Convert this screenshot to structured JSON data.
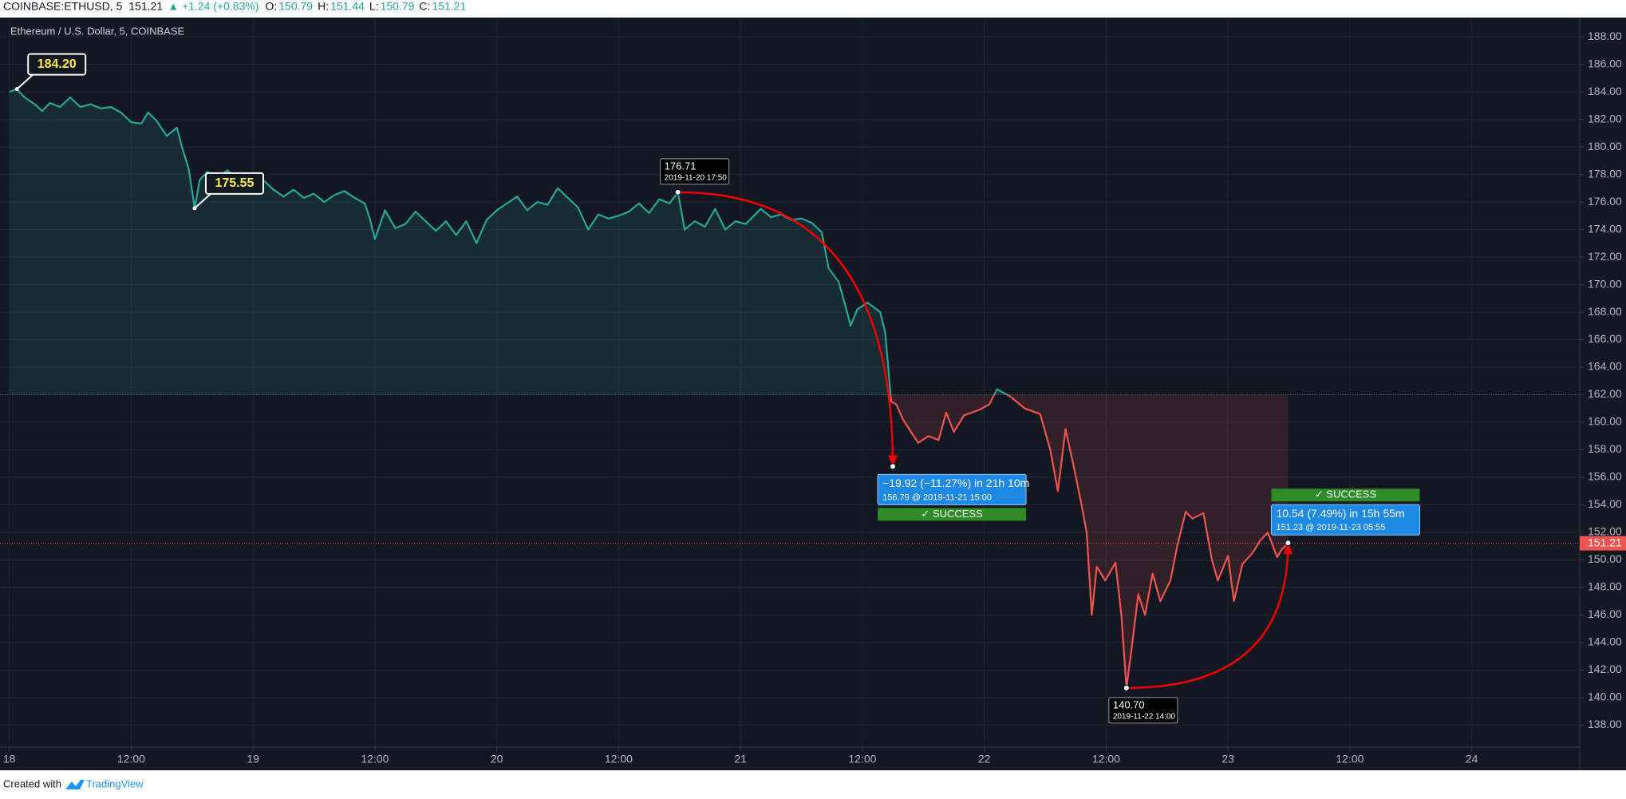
{
  "header": {
    "symbol": "COINBASE:ETHUSD, 5",
    "price": 151.21,
    "change": "▲ +1.24 (+0.83%)",
    "ohlc": [
      {
        "key": "O:",
        "value": 150.79
      },
      {
        "key": "H:",
        "value": 151.44
      },
      {
        "key": "L:",
        "value": 150.79
      },
      {
        "key": "C:",
        "value": 151.21
      }
    ]
  },
  "chart_data": {
    "type": "baseline",
    "title": "Ethereum / U.S. Dollar, 5, COINBASE",
    "baseline": 162,
    "color_above": "#26a69a",
    "color_below": "#ef5350",
    "grid": true,
    "last_price": {
      "value": 151.21,
      "label": "151.21"
    },
    "x": [
      "2019-11-18 00:00",
      "2019-11-18 00:45",
      "2019-11-18 01:30",
      "2019-11-18 02:30",
      "2019-11-18 03:15",
      "2019-11-18 04:00",
      "2019-11-18 05:00",
      "2019-11-18 06:00",
      "2019-11-18 07:00",
      "2019-11-18 08:00",
      "2019-11-18 09:00",
      "2019-11-18 10:00",
      "2019-11-18 11:00",
      "2019-11-18 12:00",
      "2019-11-18 13:00",
      "2019-11-18 13:40",
      "2019-11-18 14:30",
      "2019-11-18 15:30",
      "2019-11-18 16:30",
      "2019-11-18 17:00",
      "2019-11-18 17:40",
      "2019-11-18 18:15",
      "2019-11-18 18:45",
      "2019-11-18 19:30",
      "2019-11-18 20:30",
      "2019-11-18 21:30",
      "2019-11-18 22:30",
      "2019-11-18 23:30",
      "2019-11-19 00:00",
      "2019-11-19 01:00",
      "2019-11-19 02:00",
      "2019-11-19 03:00",
      "2019-11-19 04:00",
      "2019-11-19 05:00",
      "2019-11-19 06:00",
      "2019-11-19 07:00",
      "2019-11-19 08:00",
      "2019-11-19 09:00",
      "2019-11-19 10:00",
      "2019-11-19 11:00",
      "2019-11-19 11:30",
      "2019-11-19 12:00",
      "2019-11-19 13:00",
      "2019-11-19 14:00",
      "2019-11-19 15:00",
      "2019-11-19 16:00",
      "2019-11-19 17:00",
      "2019-11-19 18:00",
      "2019-11-19 19:00",
      "2019-11-19 20:00",
      "2019-11-19 21:00",
      "2019-11-19 22:00",
      "2019-11-19 23:00",
      "2019-11-20 00:00",
      "2019-11-20 01:00",
      "2019-11-20 02:00",
      "2019-11-20 03:00",
      "2019-11-20 04:00",
      "2019-11-20 05:00",
      "2019-11-20 06:00",
      "2019-11-20 07:00",
      "2019-11-20 08:00",
      "2019-11-20 09:00",
      "2019-11-20 10:00",
      "2019-11-20 11:00",
      "2019-11-20 12:00",
      "2019-11-20 13:00",
      "2019-11-20 14:00",
      "2019-11-20 15:00",
      "2019-11-20 16:00",
      "2019-11-20 17:00",
      "2019-11-20 17:50",
      "2019-11-20 18:30",
      "2019-11-20 19:30",
      "2019-11-20 20:30",
      "2019-11-20 21:30",
      "2019-11-20 22:30",
      "2019-11-20 23:30",
      "2019-11-21 00:30",
      "2019-11-21 02:00",
      "2019-11-21 03:00",
      "2019-11-21 04:00",
      "2019-11-21 05:00",
      "2019-11-21 06:00",
      "2019-11-21 07:00",
      "2019-11-21 08:00",
      "2019-11-21 08:40",
      "2019-11-21 09:40",
      "2019-11-21 10:30",
      "2019-11-21 10:50",
      "2019-11-21 11:30",
      "2019-11-21 12:30",
      "2019-11-21 13:45",
      "2019-11-21 14:15",
      "2019-11-21 14:50",
      "2019-11-21 15:20",
      "2019-11-21 16:00",
      "2019-11-21 17:30",
      "2019-11-21 18:30",
      "2019-11-21 19:30",
      "2019-11-21 20:15",
      "2019-11-21 21:00",
      "2019-11-21 22:00",
      "2019-11-21 23:30",
      "2019-11-22 00:30",
      "2019-11-22 01:15",
      "2019-11-22 02:30",
      "2019-11-22 04:00",
      "2019-11-22 05:30",
      "2019-11-22 06:30",
      "2019-11-22 07:15",
      "2019-11-22 08:00",
      "2019-11-22 08:45",
      "2019-11-22 09:35",
      "2019-11-22 10:05",
      "2019-11-22 10:35",
      "2019-11-22 11:05",
      "2019-11-22 11:55",
      "2019-11-22 12:55",
      "2019-11-22 13:30",
      "2019-11-22 14:00",
      "2019-11-22 14:30",
      "2019-11-22 15:10",
      "2019-11-22 15:50",
      "2019-11-22 16:35",
      "2019-11-22 17:20",
      "2019-11-22 18:20",
      "2019-11-22 19:00",
      "2019-11-22 19:50",
      "2019-11-22 20:30",
      "2019-11-22 21:35",
      "2019-11-22 22:25",
      "2019-11-22 23:00",
      "2019-11-23 00:00",
      "2019-11-23 00:35",
      "2019-11-23 01:25",
      "2019-11-23 02:25",
      "2019-11-23 03:10",
      "2019-11-23 03:55",
      "2019-11-23 04:50",
      "2019-11-23 05:20",
      "2019-11-23 05:55"
    ],
    "values": [
      184.0,
      184.2,
      183.6,
      183.1,
      182.6,
      183.2,
      182.9,
      183.6,
      182.9,
      183.1,
      182.8,
      182.9,
      182.5,
      181.8,
      181.7,
      182.5,
      181.9,
      180.8,
      181.4,
      180.0,
      178.4,
      175.55,
      177.6,
      178.2,
      177.8,
      178.3,
      177.4,
      177.0,
      177.1,
      177.6,
      176.9,
      176.4,
      176.9,
      176.3,
      176.6,
      176.0,
      176.5,
      176.8,
      176.3,
      175.9,
      174.8,
      173.3,
      175.4,
      174.1,
      174.4,
      175.3,
      174.6,
      173.9,
      174.6,
      173.6,
      174.6,
      173.0,
      174.7,
      175.4,
      175.9,
      176.4,
      175.4,
      176.0,
      175.8,
      177.0,
      176.3,
      175.6,
      174.0,
      175.1,
      174.8,
      175.0,
      175.3,
      175.9,
      175.2,
      176.2,
      175.9,
      176.71,
      174.0,
      174.6,
      174.2,
      175.5,
      174.0,
      174.6,
      174.4,
      175.5,
      174.9,
      175.1,
      174.7,
      174.8,
      174.5,
      173.8,
      171.2,
      170.2,
      168.0,
      167.0,
      168.2,
      168.7,
      168.0,
      166.5,
      161.5,
      161.3,
      160.2,
      158.5,
      159.0,
      158.7,
      160.7,
      159.3,
      160.5,
      160.9,
      161.3,
      162.4,
      161.9,
      161.0,
      160.6,
      158.0,
      155.0,
      159.5,
      157.0,
      154.0,
      152.0,
      146.0,
      149.5,
      148.5,
      149.8,
      146.0,
      140.7,
      143.5,
      147.5,
      146.0,
      149.0,
      147.0,
      148.5,
      151.0,
      153.5,
      153.0,
      153.4,
      150.0,
      148.5,
      150.3,
      147.0,
      149.7,
      150.5,
      151.4,
      152.0,
      150.2,
      150.8,
      151.21
    ],
    "xlim": [
      "2019-11-17 23:05",
      "2019-11-24 10:38"
    ],
    "xticks": [
      {
        "value": "2019-11-18 00:00",
        "label": "18"
      },
      {
        "value": "2019-11-18 12:00",
        "label": "12:00"
      },
      {
        "value": "2019-11-19 00:00",
        "label": "19"
      },
      {
        "value": "2019-11-19 12:00",
        "label": "12:00"
      },
      {
        "value": "2019-11-20 00:00",
        "label": "20"
      },
      {
        "value": "2019-11-20 12:00",
        "label": "12:00"
      },
      {
        "value": "2019-11-21 00:00",
        "label": "21"
      },
      {
        "value": "2019-11-21 12:00",
        "label": "12:00"
      },
      {
        "value": "2019-11-22 00:00",
        "label": "22"
      },
      {
        "value": "2019-11-22 12:00",
        "label": "12:00"
      },
      {
        "value": "2019-11-23 00:00",
        "label": "23"
      },
      {
        "value": "2019-11-23 12:00",
        "label": "12:00"
      },
      {
        "value": "2019-11-24 00:00",
        "label": "24"
      }
    ],
    "ylim": [
      136.4,
      189.4
    ],
    "yticks": [
      {
        "value": 138,
        "label": "138.00"
      },
      {
        "value": 140,
        "label": "140.00"
      },
      {
        "value": 142,
        "label": "142.00"
      },
      {
        "value": 144,
        "label": "144.00"
      },
      {
        "value": 146,
        "label": "146.00"
      },
      {
        "value": 148,
        "label": "148.00"
      },
      {
        "value": 150,
        "label": "150.00"
      },
      {
        "value": 152,
        "label": "152.00"
      },
      {
        "value": 154,
        "label": "154.00"
      },
      {
        "value": 156,
        "label": "156.00"
      },
      {
        "value": 158,
        "label": "158.00"
      },
      {
        "value": 160,
        "label": "160.00"
      },
      {
        "value": 162,
        "label": "162.00"
      },
      {
        "value": 164,
        "label": "164.00"
      },
      {
        "value": 166,
        "label": "166.00"
      },
      {
        "value": 168,
        "label": "168.00"
      },
      {
        "value": 170,
        "label": "170.00"
      },
      {
        "value": 172,
        "label": "172.00"
      },
      {
        "value": 174,
        "label": "174.00"
      },
      {
        "value": 176,
        "label": "176.00"
      },
      {
        "value": 178,
        "label": "178.00"
      },
      {
        "value": 180,
        "label": "180.00"
      },
      {
        "value": 182,
        "label": "182.00"
      },
      {
        "value": 184,
        "label": "184.00"
      },
      {
        "value": 186,
        "label": "186.00"
      },
      {
        "value": 188,
        "label": "188.00"
      }
    ],
    "price_notes": [
      {
        "x": "2019-11-18 00:45",
        "y": 184.2,
        "label": "184.20"
      },
      {
        "x": "2019-11-18 18:15",
        "y": 175.55,
        "label": "175.55"
      }
    ],
    "measurements": [
      {
        "from": {
          "x": "2019-11-20 17:50",
          "y": 176.71
        },
        "to": {
          "x": "2019-11-21 15:00",
          "y": 156.79
        },
        "text": "−19.92 (−11.27%) in 21h 10m",
        "subtext": "156.79 @ 2019-11-21  15:00",
        "status": "✓ SUCCESS"
      },
      {
        "from": {
          "x": "2019-11-22 14:00",
          "y": 140.7,
          "label": "140.70"
        },
        "to": {
          "x": "2019-11-23 05:55",
          "y": 151.23
        },
        "text": "10.54 (7.49%) in 15h 55m",
        "subtext": "151.23 @ 2019-11-23  05:55",
        "status": "✓ SUCCESS"
      }
    ]
  },
  "footer": {
    "text": "Created with",
    "brand": "TradingView"
  }
}
